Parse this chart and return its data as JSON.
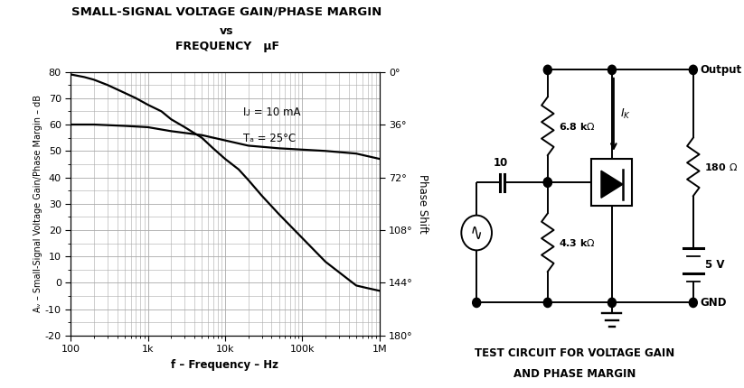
{
  "title_line1": "SMALL-SIGNAL VOLTAGE GAIN/PHASE MARGIN",
  "title_line2": "vs",
  "title_line3": "FREQUENCY   μF",
  "xlabel": "f – Frequency – Hz",
  "ylabel_left": "Aᵥ – Small-Signal Voltage Gain/Phase Margin – dB",
  "ylabel_right": "Phase Shift",
  "ylim_left": [
    -20,
    80
  ],
  "ylim_right_labels": [
    "0°",
    "36°",
    "72°",
    "108°",
    "144°",
    "180°"
  ],
  "ylim_right_ticks": [
    0,
    36,
    72,
    108,
    144,
    180
  ],
  "xlim": [
    100,
    1000000
  ],
  "annotation_line1": "Iᴊ = 10 mA",
  "annotation_line2": "Tₐ = 25°C",
  "bg_color": "#ffffff",
  "grid_color": "#aaaaaa",
  "line_color": "#000000",
  "yticks": [
    -20,
    -10,
    0,
    10,
    20,
    30,
    40,
    50,
    60,
    70,
    80
  ],
  "xtick_labels": [
    "100",
    "1k",
    "10k",
    "100k",
    "1M"
  ],
  "xtick_vals": [
    100,
    1000,
    10000,
    100000,
    1000000
  ],
  "gain_curve_x": [
    100,
    150,
    200,
    300,
    500,
    700,
    1000,
    1500,
    2000,
    3000,
    5000,
    7000,
    10000,
    15000,
    20000,
    30000,
    50000,
    100000,
    200000,
    500000,
    700000,
    1000000
  ],
  "gain_curve_y": [
    79,
    78,
    77,
    75,
    72,
    70,
    67.5,
    65,
    62,
    59,
    55,
    51,
    47,
    43,
    39,
    33,
    26,
    17,
    8,
    -1,
    -2,
    -3
  ],
  "phase_curve_x": [
    100,
    200,
    500,
    1000,
    2000,
    5000,
    10000,
    20000,
    50000,
    100000,
    200000,
    500000,
    1000000
  ],
  "phase_curve_y": [
    60,
    60,
    59.5,
    59,
    57.5,
    56,
    54,
    52,
    51,
    50.5,
    50,
    49,
    47
  ],
  "circuit_caption_line1": "TEST CIRCUIT FOR VOLTAGE GAIN",
  "circuit_caption_line2": "AND PHASE MARGIN"
}
